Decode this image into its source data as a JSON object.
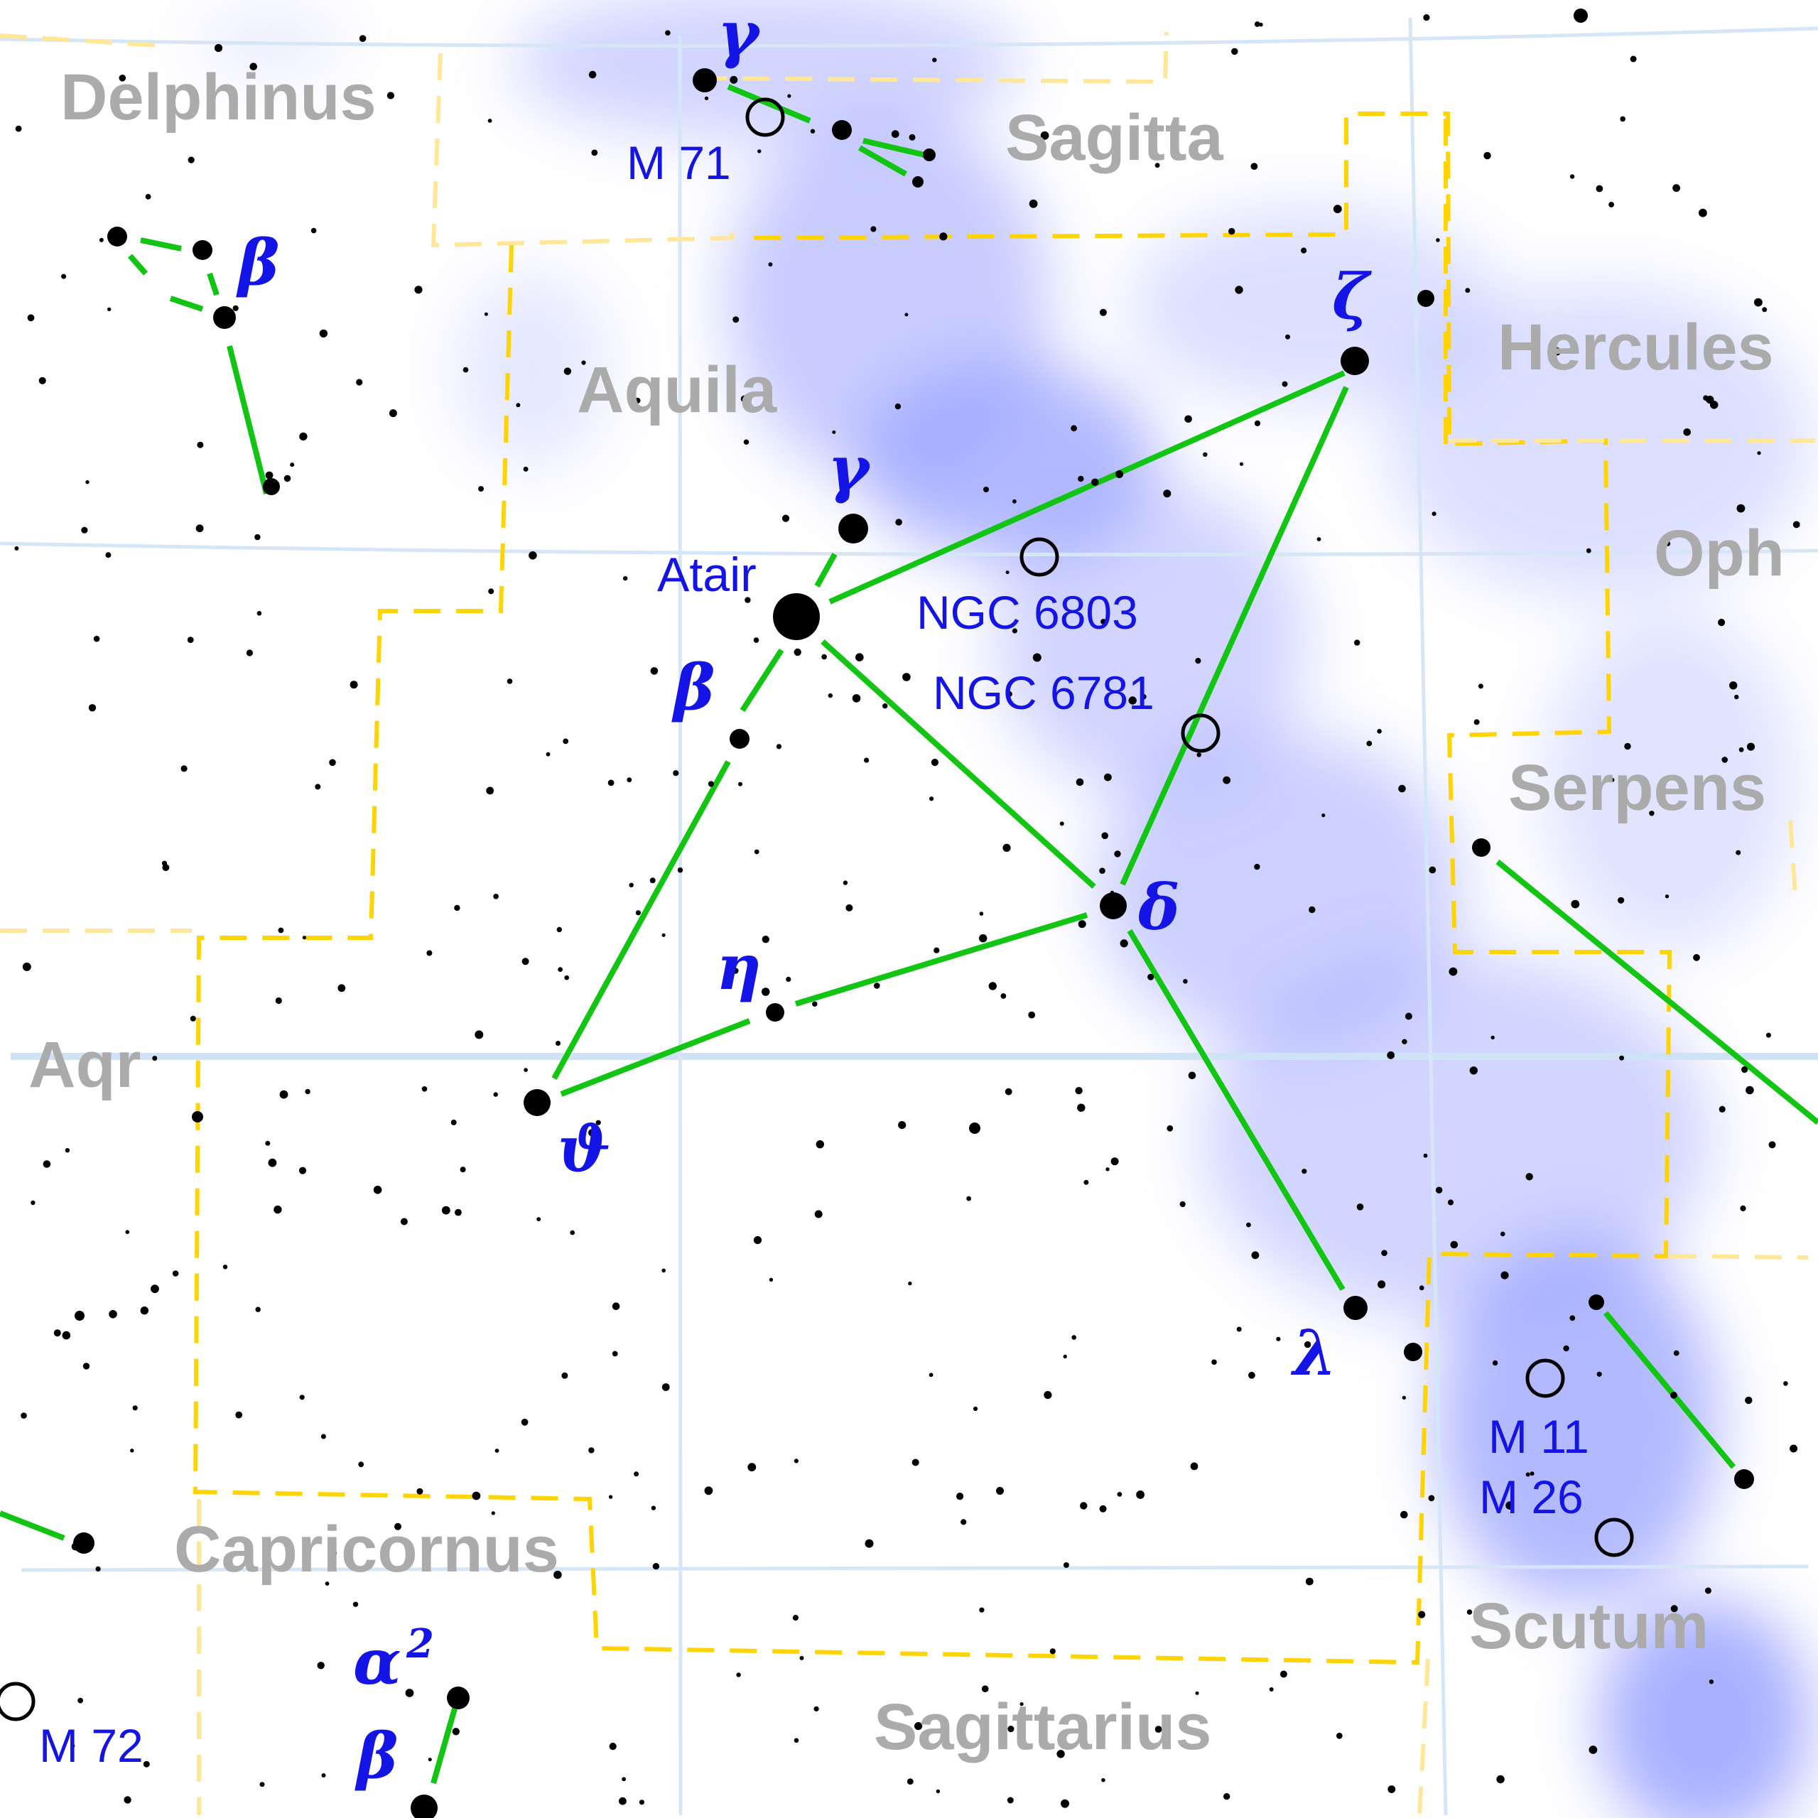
{
  "map": {
    "colors": {
      "background": "#ffffff",
      "milky_way": "#9aa2ff",
      "boundary": "#ffd400",
      "grid": "#d6e6f7",
      "lines": "#12c512",
      "stars": "#000000",
      "labels": "#1414e6",
      "names": "#ababab"
    },
    "constellations": [
      "Delphinus",
      "Sagitta",
      "Aquila",
      "Hercules",
      "Oph",
      "Serpens",
      "Aqr",
      "Capricornus",
      "Scutum",
      "Sagittarius"
    ],
    "star_labels": [
      "γ",
      "β",
      "ζ",
      "γ",
      "Atair",
      "β",
      "δ",
      "η",
      "ϑ",
      "λ",
      "α",
      "2",
      "β"
    ],
    "objects": [
      "M 71",
      "NGC 6803",
      "NGC 6781",
      "M 11",
      "M 26",
      "M 72"
    ]
  }
}
